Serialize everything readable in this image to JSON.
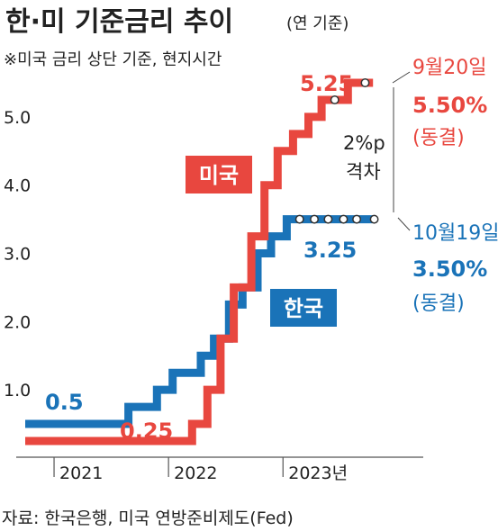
{
  "header": {
    "title": "한·미 기준금리 추이",
    "title_suffix": "(연 기준)",
    "note": "※미국 금리 상단 기준, 현지시간"
  },
  "source": "자료: 한국은행, 미국 연방준비제도(Fed)",
  "colors": {
    "us": "#e8473f",
    "korea": "#1a73b8",
    "axis": "#555555",
    "text": "#222222"
  },
  "chart_data": {
    "type": "line",
    "step": true,
    "x_tick_labels": [
      "2021",
      "2022",
      "2023년"
    ],
    "y_ticks": [
      1.0,
      2.0,
      3.0,
      4.0,
      5.0
    ],
    "y_tick_labels": [
      "1.0",
      "2.0",
      "3.0",
      "4.0",
      "5.0"
    ],
    "ylim": [
      0,
      5.75
    ],
    "xlim": [
      "2020-10-01",
      "2023-12-31"
    ],
    "series": [
      {
        "key": "us",
        "name": "미국",
        "label": "미국",
        "points": [
          [
            "2020-10-01",
            0.25
          ],
          [
            "2022-03-17",
            0.5
          ],
          [
            "2022-05-05",
            1.0
          ],
          [
            "2022-06-16",
            1.75
          ],
          [
            "2022-07-28",
            2.5
          ],
          [
            "2022-09-22",
            3.25
          ],
          [
            "2022-11-03",
            4.0
          ],
          [
            "2022-12-15",
            4.5
          ],
          [
            "2023-02-02",
            4.75
          ],
          [
            "2023-03-23",
            5.0
          ],
          [
            "2023-05-04",
            5.25
          ],
          [
            "2023-07-27",
            5.5
          ],
          [
            "2023-10-15",
            5.5
          ]
        ],
        "holds": [
          "2023-06-15",
          "2023-09-20"
        ],
        "annotations": [
          {
            "id": "low",
            "text": "0.25"
          },
          {
            "id": "mid",
            "text": "5.25"
          }
        ],
        "end_label": {
          "date": "9월20일",
          "value": "5.50%",
          "status": "(동결)"
        }
      },
      {
        "key": "korea",
        "name": "한국",
        "label": "한국",
        "points": [
          [
            "2020-10-01",
            0.5
          ],
          [
            "2021-08-26",
            0.75
          ],
          [
            "2021-11-25",
            1.0
          ],
          [
            "2022-01-14",
            1.25
          ],
          [
            "2022-04-14",
            1.5
          ],
          [
            "2022-05-26",
            1.75
          ],
          [
            "2022-07-13",
            2.25
          ],
          [
            "2022-08-25",
            2.5
          ],
          [
            "2022-10-12",
            3.0
          ],
          [
            "2022-11-24",
            3.25
          ],
          [
            "2023-01-13",
            3.5
          ],
          [
            "2023-10-19",
            3.5
          ]
        ],
        "holds": [
          "2023-02-23",
          "2023-04-11",
          "2023-05-25",
          "2023-07-13",
          "2023-08-24",
          "2023-10-19"
        ],
        "annotations": [
          {
            "id": "low",
            "text": "0.5"
          },
          {
            "id": "mid",
            "text": "3.25"
          }
        ],
        "end_label": {
          "date": "10월19일",
          "value": "3.50%",
          "status": "(동결)"
        }
      }
    ],
    "gap_annotation": {
      "line1": "2%p",
      "line2": "격차"
    }
  }
}
